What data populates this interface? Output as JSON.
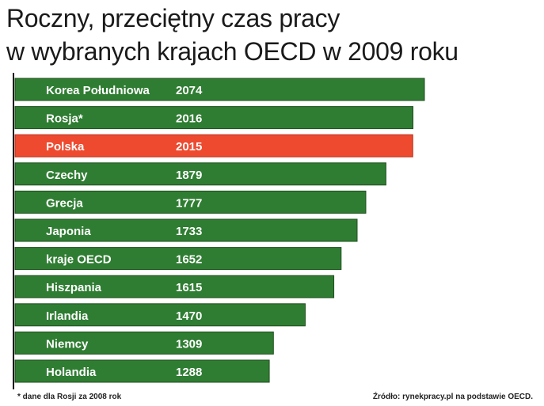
{
  "title_line1": "Roczny, przeciętny czas pracy",
  "title_line2": "w wybranych krajach OECD w 2009 roku",
  "footnote": "* dane dla Rosji za 2008 rok",
  "source": "Źródło: rynekpracy.pl na podstawie OECD.",
  "colors": {
    "bar": "#2f7d32",
    "bar_border": "#1f4f1f",
    "highlight": "#ee4a2f",
    "label": "#ffffff"
  },
  "chart_data": {
    "type": "bar",
    "orientation": "horizontal",
    "title": "Roczny, przeciętny czas pracy w wybranych krajach OECD w 2009 roku",
    "xlabel": "",
    "ylabel": "",
    "categories": [
      "Korea Południowa",
      "Rosja*",
      "Polska",
      "Czechy",
      "Grecja",
      "Japonia",
      "kraje OECD",
      "Hiszpania",
      "Irlandia",
      "Niemcy",
      "Holandia"
    ],
    "values": [
      2074,
      2016,
      2015,
      1879,
      1777,
      1733,
      1652,
      1615,
      1470,
      1309,
      1288
    ],
    "value_labels": [
      "2074",
      "2016",
      "2015",
      "1879",
      "1777",
      "1733",
      "1652",
      "1615",
      "1470",
      "1309",
      "1288"
    ],
    "highlight": "Polska",
    "grid": false
  }
}
